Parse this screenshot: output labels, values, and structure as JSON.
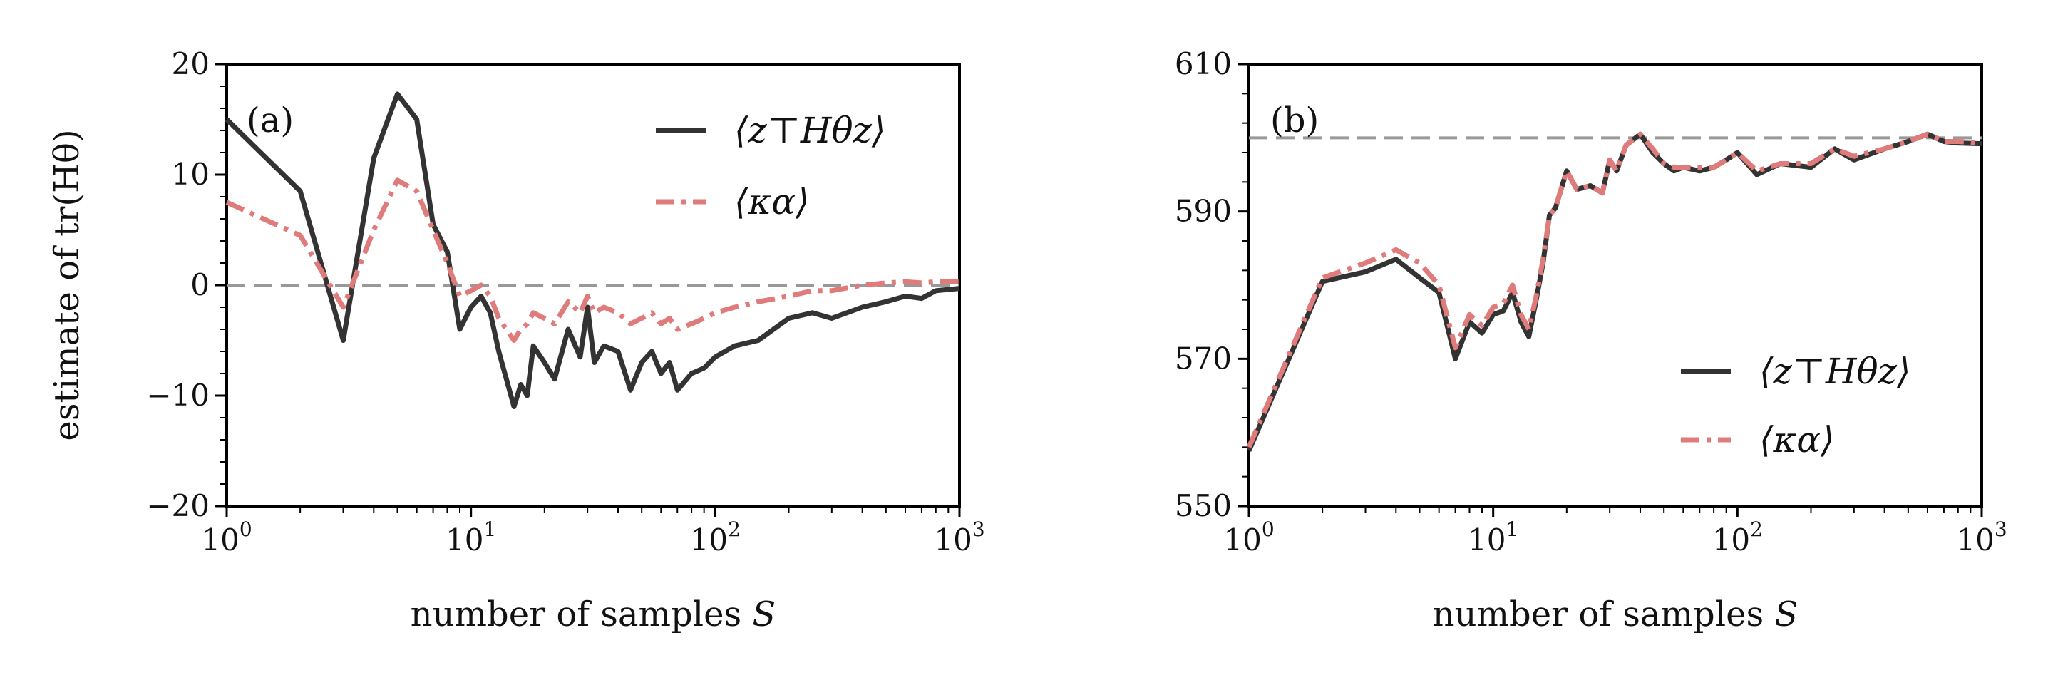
{
  "chart_data": [
    {
      "type": "line",
      "panel_label": "(a)",
      "xlabel": "number of samples S",
      "xlabel_main": "number of samples ",
      "xlabel_var": "S",
      "ylabel": "estimate of tr(Hθ)",
      "xscale": "log",
      "xlim": [
        1,
        1000
      ],
      "ylim": [
        -20,
        20
      ],
      "xticks": [
        {
          "base": "10",
          "exp": "0"
        },
        {
          "base": "10",
          "exp": "1"
        },
        {
          "base": "10",
          "exp": "2"
        },
        {
          "base": "10",
          "exp": "3"
        }
      ],
      "xtick_values": [
        1,
        10,
        100,
        1000
      ],
      "yticks": [
        20,
        10,
        0,
        -10,
        -20
      ],
      "ytick_labels": [
        "20",
        "10",
        "0",
        "−10",
        "−20"
      ],
      "reference_line": 0,
      "legend_position": "top-right",
      "series": [
        {
          "name": "⟨z⊤Hθz⟩",
          "color": "#333333",
          "style": "solid",
          "x": [
            1,
            2,
            3,
            4,
            5,
            6,
            7,
            8,
            9,
            10,
            11,
            12,
            13,
            15,
            16,
            17,
            18,
            20,
            22,
            25,
            28,
            30,
            32,
            35,
            40,
            45,
            50,
            55,
            60,
            65,
            70,
            80,
            90,
            100,
            120,
            150,
            200,
            250,
            300,
            400,
            500,
            600,
            700,
            800,
            1000
          ],
          "y": [
            15,
            8.5,
            -5,
            11.5,
            17.3,
            15,
            5.5,
            3,
            -4,
            -2,
            -1,
            -2.5,
            -6,
            -11,
            -9,
            -10,
            -5.5,
            -7,
            -8.5,
            -4,
            -6.5,
            -2,
            -7,
            -5.5,
            -6,
            -9.5,
            -7,
            -6,
            -8,
            -7,
            -9.5,
            -8,
            -7.5,
            -6.5,
            -5.5,
            -5,
            -3,
            -2.5,
            -3,
            -2,
            -1.5,
            -1,
            -1.2,
            -0.5,
            -0.3
          ]
        },
        {
          "name": "⟨κα⟩",
          "color": "#e07b7b",
          "style": "dashdot",
          "x": [
            1,
            2,
            3,
            4,
            5,
            6,
            7,
            8,
            9,
            10,
            11,
            12,
            13,
            15,
            16,
            17,
            18,
            20,
            22,
            25,
            28,
            30,
            32,
            35,
            40,
            45,
            50,
            55,
            60,
            65,
            70,
            80,
            90,
            100,
            120,
            150,
            200,
            250,
            300,
            400,
            500,
            600,
            700,
            800,
            1000
          ],
          "y": [
            7.5,
            4.5,
            -2,
            5,
            9.5,
            8.5,
            5,
            2,
            -1,
            -0.5,
            0,
            -1,
            -3,
            -5,
            -4,
            -3.5,
            -2.5,
            -3,
            -3.5,
            -1.5,
            -2.5,
            -1,
            -2.5,
            -2,
            -2.5,
            -3.5,
            -3,
            -2.5,
            -3.5,
            -3,
            -4,
            -3.5,
            -3,
            -2.5,
            -2,
            -1.5,
            -1,
            -0.5,
            -0.5,
            0,
            0.2,
            0.3,
            0.2,
            0.3,
            0.3
          ]
        }
      ]
    },
    {
      "type": "line",
      "panel_label": "(b)",
      "xlabel": "number of samples S",
      "xlabel_main": "number of samples ",
      "xlabel_var": "S",
      "ylabel": "",
      "xscale": "log",
      "xlim": [
        1,
        1000
      ],
      "ylim": [
        550,
        610
      ],
      "xticks": [
        {
          "base": "10",
          "exp": "0"
        },
        {
          "base": "10",
          "exp": "1"
        },
        {
          "base": "10",
          "exp": "2"
        },
        {
          "base": "10",
          "exp": "3"
        }
      ],
      "xtick_values": [
        1,
        10,
        100,
        1000
      ],
      "yticks": [
        610,
        590,
        570,
        550
      ],
      "ytick_labels": [
        "610",
        "590",
        "570",
        "550"
      ],
      "reference_line": 600,
      "legend_position": "bottom-right",
      "series": [
        {
          "name": "⟨z⊤Hθz⟩",
          "color": "#333333",
          "style": "solid",
          "x": [
            1,
            2,
            3,
            4,
            5,
            6,
            7,
            8,
            9,
            10,
            11,
            12,
            13,
            14,
            15,
            16,
            17,
            18,
            20,
            22,
            25,
            28,
            30,
            32,
            35,
            40,
            45,
            50,
            55,
            60,
            70,
            80,
            90,
            100,
            120,
            150,
            200,
            250,
            300,
            400,
            500,
            600,
            700,
            800,
            1000
          ],
          "y": [
            557.5,
            580.5,
            581.8,
            583.5,
            581,
            579,
            570,
            575,
            573.5,
            576,
            576.5,
            579,
            575,
            573,
            578,
            583,
            589.5,
            590.5,
            595.5,
            593,
            593.5,
            592.5,
            597,
            595.5,
            599,
            600.5,
            598,
            596.5,
            595.5,
            596,
            595.5,
            596,
            597,
            598,
            595,
            596.5,
            596,
            598.5,
            597,
            598.5,
            599.5,
            600.5,
            599.5,
            599.3,
            599.2
          ]
        },
        {
          "name": "⟨κα⟩",
          "color": "#e07b7b",
          "style": "dashdot",
          "x": [
            1,
            2,
            3,
            4,
            5,
            6,
            7,
            8,
            9,
            10,
            11,
            12,
            13,
            14,
            15,
            16,
            17,
            18,
            20,
            22,
            25,
            28,
            30,
            32,
            35,
            40,
            45,
            50,
            55,
            60,
            70,
            80,
            90,
            100,
            120,
            150,
            200,
            250,
            300,
            400,
            500,
            600,
            700,
            800,
            1000
          ],
          "y": [
            558,
            581,
            583,
            584.8,
            583,
            580,
            571.5,
            576,
            574.5,
            577,
            577.5,
            580,
            576,
            574,
            578.5,
            583.5,
            589.5,
            590.5,
            595.5,
            593,
            593.5,
            592.5,
            597,
            595.5,
            599,
            600.5,
            598.5,
            596.5,
            596,
            596,
            596,
            596,
            597,
            598,
            595.5,
            596.5,
            596.5,
            598.5,
            597.5,
            598.5,
            599.5,
            600.5,
            599.5,
            599.5,
            599.3
          ]
        }
      ]
    }
  ]
}
